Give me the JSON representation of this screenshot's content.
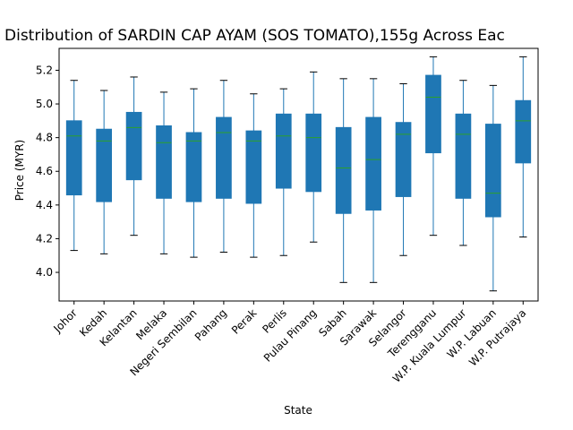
{
  "chart_data": {
    "type": "box",
    "title": "Distribution of SARDIN CAP AYAM (SOS TOMATO),155g Across Eac",
    "xlabel": "State",
    "ylabel": "Price (MYR)",
    "ylim": [
      3.83,
      5.33
    ],
    "yticks": [
      "4.0",
      "4.2",
      "4.4",
      "4.6",
      "4.8",
      "5.0",
      "5.2"
    ],
    "categories": [
      "Johor",
      "Kedah",
      "Kelantan",
      "Melaka",
      "Negeri Sembilan",
      "Pahang",
      "Perak",
      "Perlis",
      "Pulau Pinang",
      "Sabah",
      "Sarawak",
      "Selangor",
      "Terengganu",
      "W.P. Kuala Lumpur",
      "W.P. Labuan",
      "W.P. Putrajaya"
    ],
    "boxes": [
      {
        "whisker_low": 4.13,
        "q1": 4.46,
        "median": 4.81,
        "q3": 4.9,
        "whisker_high": 5.14
      },
      {
        "whisker_low": 4.11,
        "q1": 4.42,
        "median": 4.78,
        "q3": 4.85,
        "whisker_high": 5.08
      },
      {
        "whisker_low": 4.22,
        "q1": 4.55,
        "median": 4.86,
        "q3": 4.95,
        "whisker_high": 5.16
      },
      {
        "whisker_low": 4.11,
        "q1": 4.44,
        "median": 4.77,
        "q3": 4.87,
        "whisker_high": 5.07
      },
      {
        "whisker_low": 4.09,
        "q1": 4.42,
        "median": 4.78,
        "q3": 4.83,
        "whisker_high": 5.09
      },
      {
        "whisker_low": 4.12,
        "q1": 4.44,
        "median": 4.83,
        "q3": 4.92,
        "whisker_high": 5.14
      },
      {
        "whisker_low": 4.09,
        "q1": 4.41,
        "median": 4.78,
        "q3": 4.84,
        "whisker_high": 5.06
      },
      {
        "whisker_low": 4.1,
        "q1": 4.5,
        "median": 4.81,
        "q3": 4.94,
        "whisker_high": 5.09
      },
      {
        "whisker_low": 4.18,
        "q1": 4.48,
        "median": 4.8,
        "q3": 4.94,
        "whisker_high": 5.19
      },
      {
        "whisker_low": 3.94,
        "q1": 4.35,
        "median": 4.62,
        "q3": 4.86,
        "whisker_high": 5.15
      },
      {
        "whisker_low": 3.94,
        "q1": 4.37,
        "median": 4.67,
        "q3": 4.92,
        "whisker_high": 5.15
      },
      {
        "whisker_low": 4.1,
        "q1": 4.45,
        "median": 4.82,
        "q3": 4.89,
        "whisker_high": 5.12
      },
      {
        "whisker_low": 4.22,
        "q1": 4.71,
        "median": 5.04,
        "q3": 5.17,
        "whisker_high": 5.28
      },
      {
        "whisker_low": 4.16,
        "q1": 4.44,
        "median": 4.82,
        "q3": 4.94,
        "whisker_high": 5.14
      },
      {
        "whisker_low": 3.89,
        "q1": 4.33,
        "median": 4.47,
        "q3": 4.88,
        "whisker_high": 5.11
      },
      {
        "whisker_low": 4.21,
        "q1": 4.65,
        "median": 4.9,
        "q3": 5.02,
        "whisker_high": 5.28
      }
    ],
    "grid": false,
    "colors": {
      "box_fill": "#1f77b4",
      "whisker": "#1f77b4",
      "median": "#2ca02c",
      "axes": "#000000"
    }
  }
}
